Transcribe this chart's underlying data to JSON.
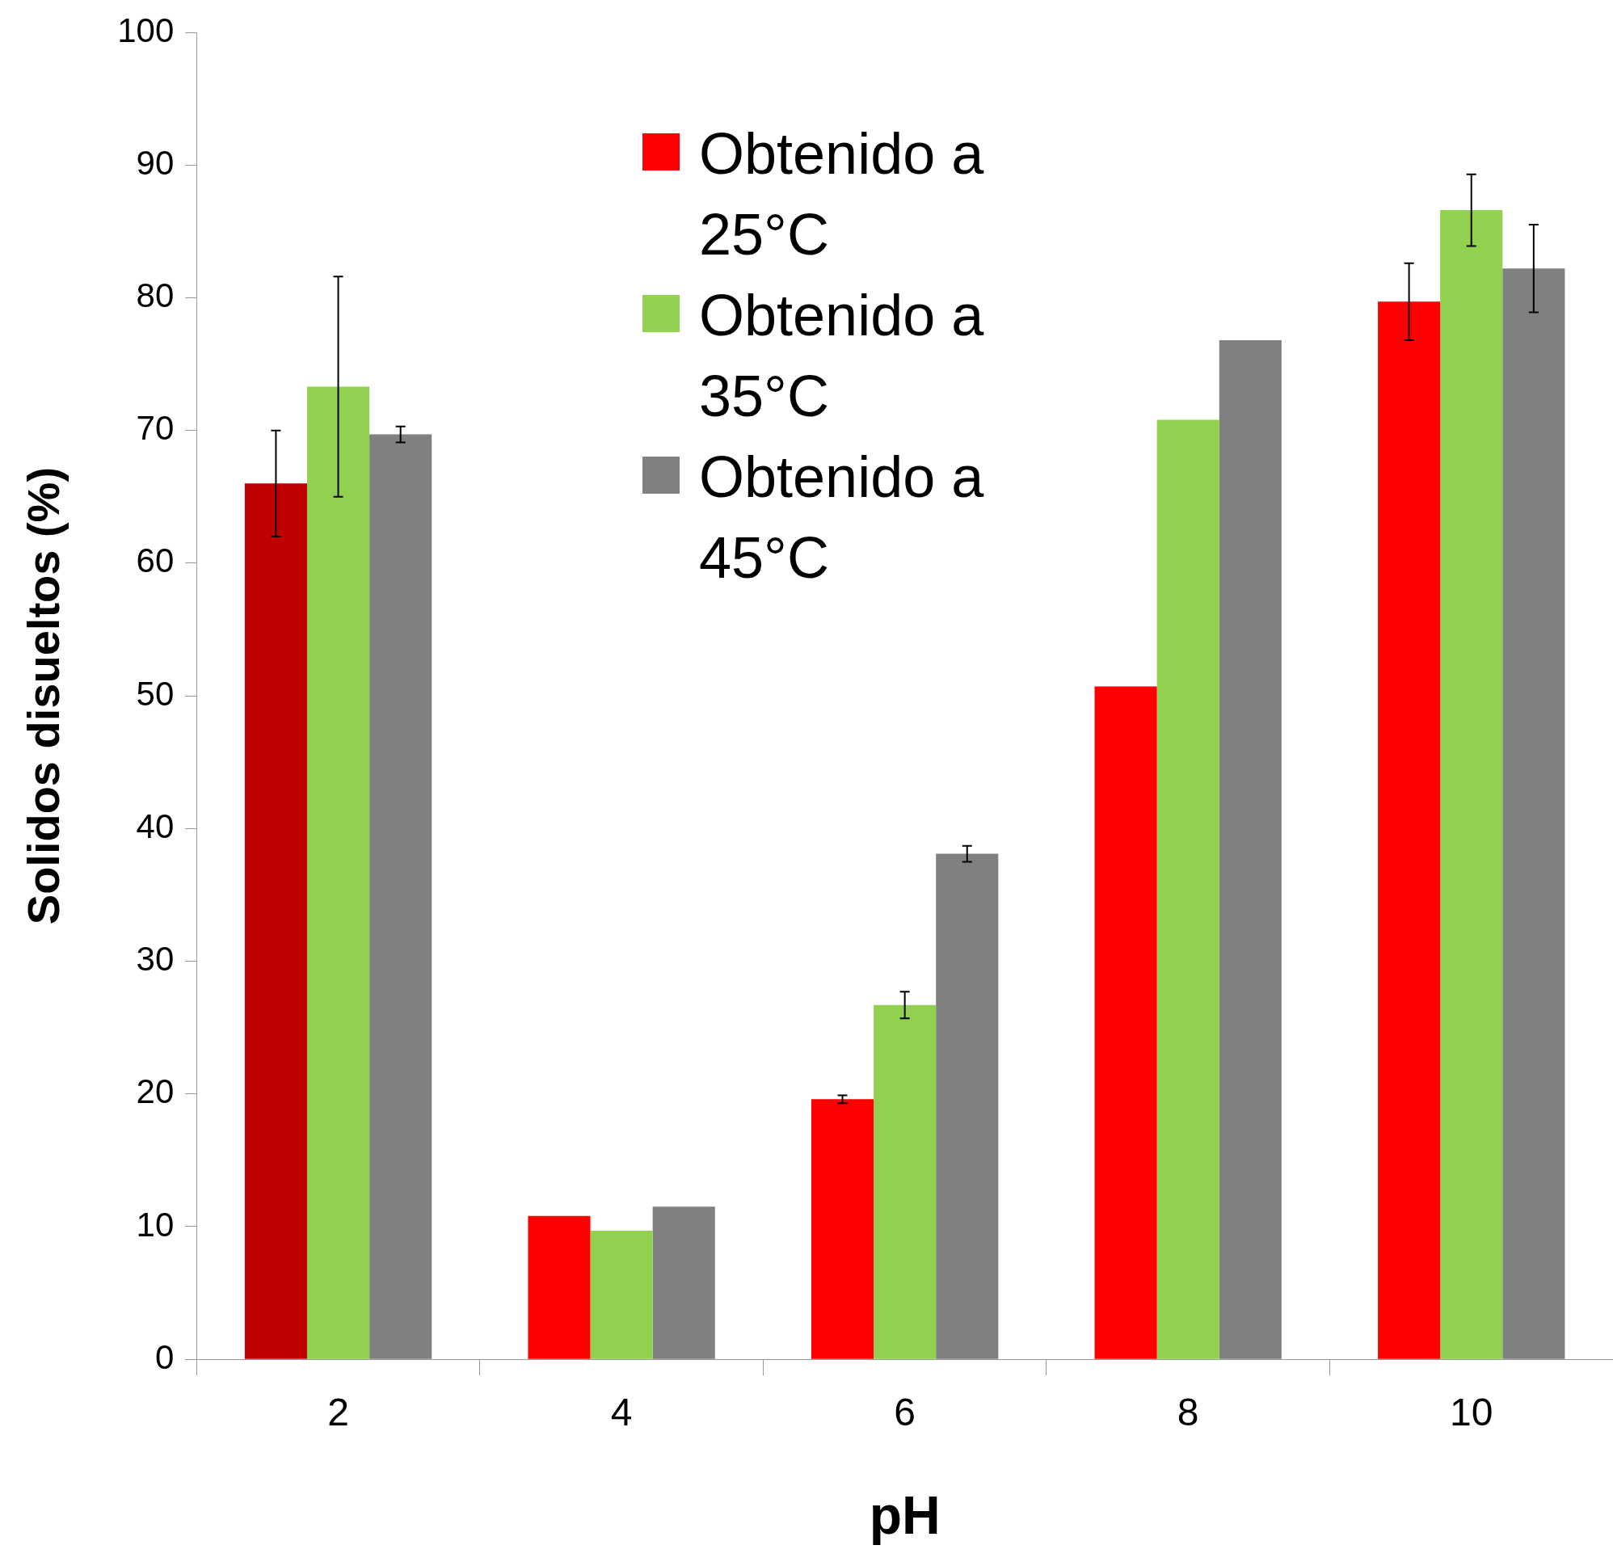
{
  "chart_data": {
    "type": "bar",
    "xlabel": "pH",
    "ylabel": "Solidos disueltos (%)",
    "categories": [
      "2",
      "4",
      "6",
      "8",
      "10"
    ],
    "series": [
      {
        "name": "Obtenido a 25°C",
        "color": "#ff0000",
        "colors": [
          "#c00000",
          "#ff0000",
          "#ff0000",
          "#ff0000",
          "#ff0000"
        ],
        "values": [
          66,
          10.8,
          19.6,
          50.7,
          79.7
        ],
        "errors": [
          4,
          null,
          0.3,
          null,
          2.9
        ]
      },
      {
        "name": "Obtenido a 35°C",
        "color": "#92d050",
        "values": [
          73.3,
          9.7,
          26.7,
          70.8,
          86.6
        ],
        "errors": [
          8.3,
          null,
          1,
          null,
          2.7
        ]
      },
      {
        "name": "Obtenido a 45°C",
        "color": "#808080",
        "values": [
          69.7,
          11.5,
          38.1,
          76.8,
          82.2
        ],
        "errors": [
          0.6,
          null,
          0.6,
          null,
          3.3
        ]
      }
    ],
    "ylim": [
      0,
      100
    ],
    "yticks": [
      0,
      10,
      20,
      30,
      40,
      50,
      60,
      70,
      80,
      90,
      100
    ],
    "grid": false,
    "legend": "top"
  }
}
